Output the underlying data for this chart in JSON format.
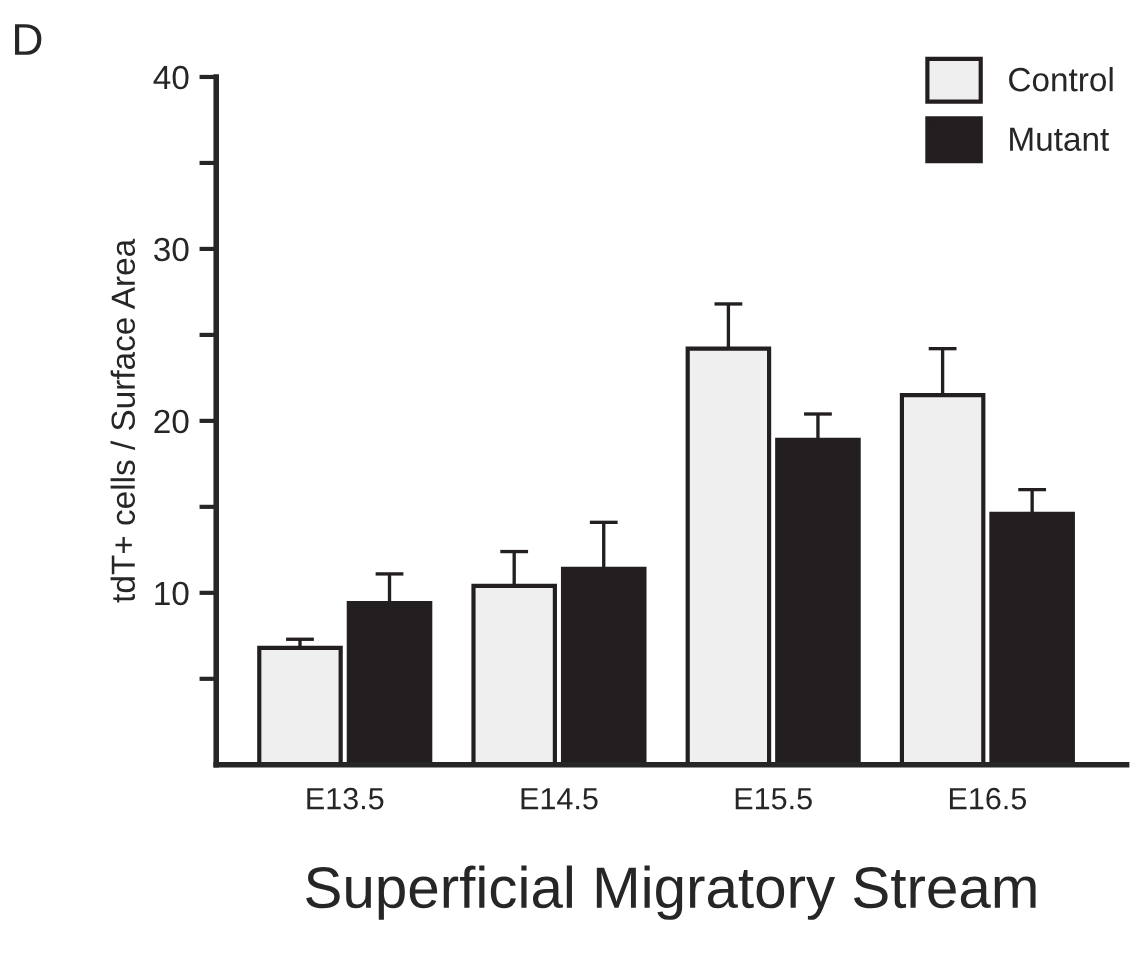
{
  "chart_data": {
    "type": "bar",
    "categories": [
      "E13.5",
      "E14.5",
      "E15.5",
      "E16.5"
    ],
    "series": [
      {
        "name": "Control",
        "color": "#efefef",
        "values": [
          6.8,
          10.4,
          24.2,
          21.5
        ],
        "errors": [
          [
            6.8,
            7.3
          ],
          [
            10.4,
            12.4
          ],
          [
            24.2,
            26.8
          ],
          [
            21.5,
            24.2
          ]
        ]
      },
      {
        "name": "Mutant",
        "color": "#231f20",
        "values": [
          9.4,
          11.4,
          18.9,
          14.6
        ],
        "errors": [
          [
            9.4,
            11.1
          ],
          [
            11.4,
            14.1
          ],
          [
            18.9,
            20.4
          ],
          [
            14.6,
            16.0
          ]
        ]
      }
    ],
    "ylabel": "tdT+ cells / Surface Area",
    "xlabel": "Superficial Migratory Stream",
    "annotations": [
      "D"
    ],
    "ylim": [
      0,
      40
    ],
    "yticks": [
      {
        "value": 5,
        "label": null
      },
      10,
      {
        "value": 15,
        "label": null
      },
      20,
      {
        "value": 25,
        "label": null
      },
      30,
      {
        "value": 35,
        "label": null
      },
      40
    ],
    "legend": "top right",
    "grid": false
  }
}
